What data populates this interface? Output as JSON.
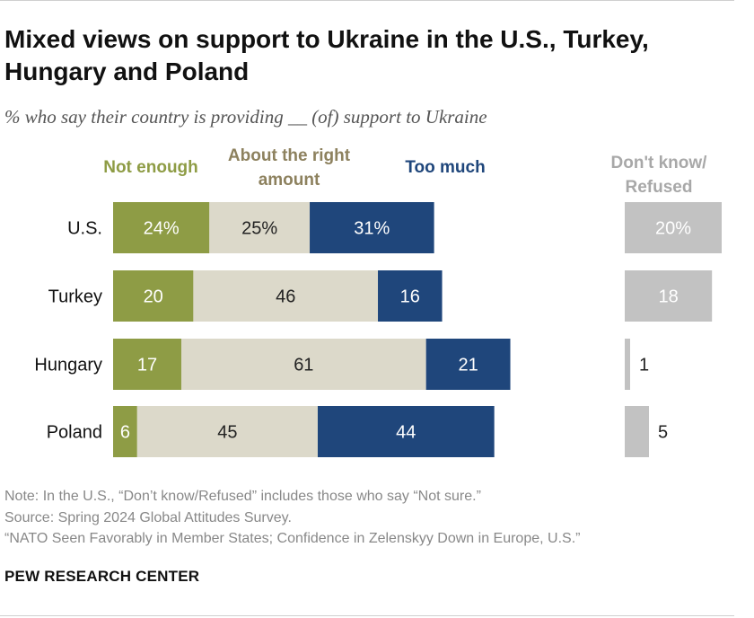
{
  "title": "Mixed views on support to Ukraine in the U.S., Turkey, Hungary and Poland",
  "subtitle": "% who say their country is providing __ (of) support to Ukraine",
  "legend": {
    "not_enough": "Not enough",
    "about_right": "About the right amount",
    "too_much": "Too much",
    "dont_know": "Don't know/ Refused"
  },
  "colors": {
    "not_enough": "#8e9c45",
    "about_right": "#dcd9ca",
    "too_much": "#1f467b",
    "dont_know": "#c2c2c2",
    "not_enough_label": "#8e9c45",
    "about_right_label": "#8d815e",
    "too_much_label": "#1f467b",
    "dont_know_label": "#a8a8a8"
  },
  "chart_data": {
    "type": "bar",
    "orientation": "horizontal",
    "stacked": true,
    "categories": [
      "U.S.",
      "Turkey",
      "Hungary",
      "Poland"
    ],
    "series": [
      {
        "name": "Not enough",
        "values": [
          24,
          20,
          17,
          6
        ],
        "labels": [
          "24%",
          "20",
          "17",
          "6"
        ]
      },
      {
        "name": "About the right amount",
        "values": [
          25,
          46,
          61,
          45
        ],
        "labels": [
          "25%",
          "46",
          "61",
          "45"
        ]
      },
      {
        "name": "Too much",
        "values": [
          31,
          16,
          21,
          44
        ],
        "labels": [
          "31%",
          "16",
          "21",
          "44"
        ]
      }
    ],
    "side_series": {
      "name": "Don't know/ Refused",
      "values": [
        20,
        18,
        1,
        5
      ],
      "labels": [
        "20%",
        "18",
        "1",
        "5"
      ]
    },
    "legend_position": "top"
  },
  "notes": [
    "Note: In the U.S., “Don’t know/Refused” includes those who say “Not sure.”",
    "Source: Spring 2024 Global Attitudes Survey.",
    "“NATO Seen Favorably in Member States; Confidence in Zelenskyy Down in Europe, U.S.”"
  ],
  "brand": "PEW RESEARCH CENTER"
}
